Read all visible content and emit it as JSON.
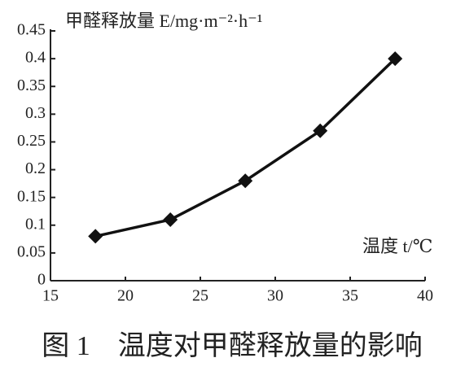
{
  "chart_data": {
    "type": "line",
    "y_label": "甲醛释放量 E/mg·m⁻²·h⁻¹",
    "x_label": "温度 t/℃",
    "caption": "图 1　温度对甲醛释放量的影响",
    "x": [
      18,
      23,
      28,
      33,
      38
    ],
    "series": [
      {
        "color": "#111111",
        "values": [
          0.08,
          0.11,
          0.18,
          0.27,
          0.4
        ]
      }
    ],
    "xlim": [
      15,
      40
    ],
    "xticks": [
      15,
      20,
      25,
      30,
      35,
      40
    ],
    "ylim": [
      0,
      0.45
    ],
    "yticks": [
      0,
      0.05,
      0.1,
      0.15,
      0.2,
      0.25,
      0.3,
      0.35,
      0.4,
      0.45
    ]
  }
}
